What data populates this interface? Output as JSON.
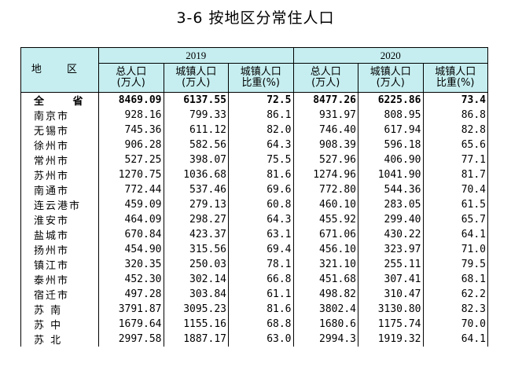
{
  "title": "3-6  按地区分常住人口",
  "header": {
    "region": "地  区",
    "years": [
      "2019",
      "2020"
    ],
    "columns": [
      {
        "line1": "总人口",
        "line2": "(万人)"
      },
      {
        "line1": "城镇人口",
        "line2": "(万人)"
      },
      {
        "line1": "城镇人口",
        "line2": "比重(%)"
      },
      {
        "line1": "总人口",
        "line2": "(万人)"
      },
      {
        "line1": "城镇人口",
        "line2": "(万人)"
      },
      {
        "line1": "城镇人口",
        "line2": "比重(%)"
      }
    ]
  },
  "rows": [
    {
      "name": "全 省",
      "v": [
        "8469.09",
        "6137.55",
        "72.5",
        "8477.26",
        "6225.86",
        "73.4"
      ]
    },
    {
      "name": "南京市",
      "v": [
        "928.16",
        "799.33",
        "86.1",
        "931.97",
        "808.95",
        "86.8"
      ]
    },
    {
      "name": "无锡市",
      "v": [
        "745.36",
        "611.12",
        "82.0",
        "746.40",
        "617.94",
        "82.8"
      ]
    },
    {
      "name": "徐州市",
      "v": [
        "906.28",
        "582.56",
        "64.3",
        "908.39",
        "596.18",
        "65.6"
      ]
    },
    {
      "name": "常州市",
      "v": [
        "527.25",
        "398.07",
        "75.5",
        "527.96",
        "406.90",
        "77.1"
      ]
    },
    {
      "name": "苏州市",
      "v": [
        "1270.75",
        "1036.68",
        "81.6",
        "1274.96",
        "1041.90",
        "81.7"
      ]
    },
    {
      "name": "南通市",
      "v": [
        "772.44",
        "537.46",
        "69.6",
        "772.80",
        "544.36",
        "70.4"
      ]
    },
    {
      "name": "连云港市",
      "v": [
        "459.09",
        "279.13",
        "60.8",
        "460.10",
        "283.05",
        "61.5"
      ]
    },
    {
      "name": "淮安市",
      "v": [
        "464.09",
        "298.27",
        "64.3",
        "455.92",
        "299.40",
        "65.7"
      ]
    },
    {
      "name": "盐城市",
      "v": [
        "670.84",
        "423.37",
        "63.1",
        "671.06",
        "430.22",
        "64.1"
      ]
    },
    {
      "name": "扬州市",
      "v": [
        "454.90",
        "315.56",
        "69.4",
        "456.10",
        "323.97",
        "71.0"
      ]
    },
    {
      "name": "镇江市",
      "v": [
        "320.35",
        "250.03",
        "78.1",
        "321.10",
        "255.11",
        "79.5"
      ]
    },
    {
      "name": "泰州市",
      "v": [
        "452.30",
        "302.14",
        "66.8",
        "451.68",
        "307.41",
        "68.1"
      ]
    },
    {
      "name": "宿迁市",
      "v": [
        "497.28",
        "303.84",
        "61.1",
        "498.82",
        "310.47",
        "62.2"
      ]
    },
    {
      "name": "苏 南",
      "v": [
        "3791.87",
        "3095.23",
        "81.6",
        "3802.4",
        "3130.80",
        "82.3"
      ]
    },
    {
      "name": "苏 中",
      "v": [
        "1679.64",
        "1155.16",
        "68.8",
        "1680.6",
        "1175.74",
        "70.0"
      ]
    },
    {
      "name": "苏 北",
      "v": [
        "2997.58",
        "1887.17",
        "63.0",
        "2994.3",
        "1919.32",
        "64.1"
      ]
    }
  ]
}
